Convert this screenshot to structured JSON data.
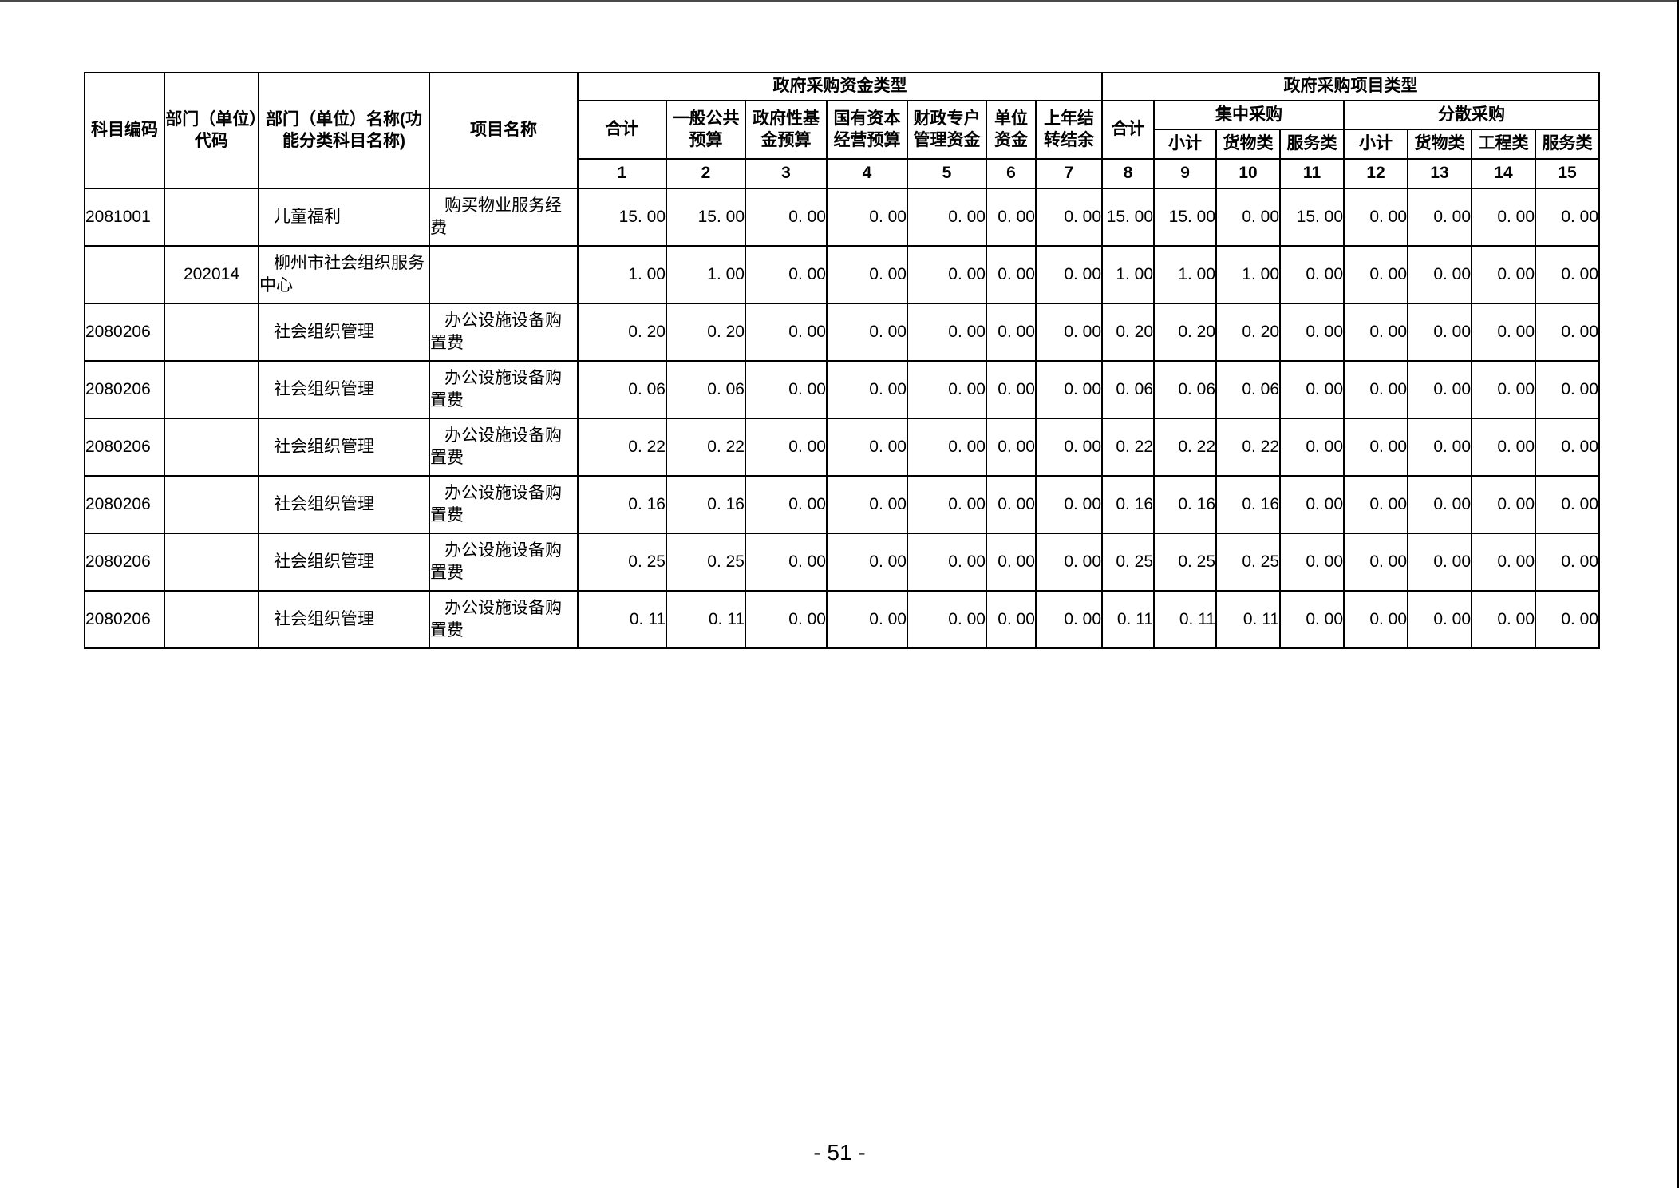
{
  "page": {
    "number_label": "- 51 -",
    "background": "#ffffff",
    "top_edge_color": "#4a4a4a",
    "right_edge_color": "#000000"
  },
  "table": {
    "border_color": "#000000",
    "header": {
      "col_subject_code": "科目编码",
      "col_dept_code": "部门（单位）代码",
      "col_dept_name": "部门（单位）名称(功能分类科目名称)",
      "col_project_name": "项目名称",
      "group_fund_type": "政府采购资金类型",
      "group_project_type": "政府采购项目类型",
      "fund_cols": [
        "合计",
        "一般公共预算",
        "政府性基金预算",
        "国有资本经营预算",
        "财政专户管理资金",
        "单位资金",
        "上年结转结余"
      ],
      "total_col": "合计",
      "centralized": "集中采购",
      "decentralized": "分散采购",
      "centralized_cols": [
        "小计",
        "货物类",
        "服务类"
      ],
      "decentralized_cols": [
        "小计",
        "货物类",
        "工程类",
        "服务类"
      ],
      "index_row": [
        "1",
        "2",
        "3",
        "4",
        "5",
        "6",
        "7",
        "8",
        "9",
        "10",
        "11",
        "12",
        "13",
        "14",
        "15"
      ]
    },
    "rows": [
      {
        "subject_code": "2081001",
        "dept_code": "",
        "dept_name": "儿童福利",
        "project_name": "购买物业服务经费",
        "values": [
          "15. 00",
          "15. 00",
          "0. 00",
          "0. 00",
          "0. 00",
          "0. 00",
          "0. 00",
          "15. 00",
          "15. 00",
          "0. 00",
          "15. 00",
          "0. 00",
          "0. 00",
          "0. 00",
          "0. 00"
        ]
      },
      {
        "subject_code": "",
        "dept_code": "202014",
        "dept_name": "柳州市社会组织服务中心",
        "project_name": "",
        "values": [
          "1. 00",
          "1. 00",
          "0. 00",
          "0. 00",
          "0. 00",
          "0. 00",
          "0. 00",
          "1. 00",
          "1. 00",
          "1. 00",
          "0. 00",
          "0. 00",
          "0. 00",
          "0. 00",
          "0. 00"
        ]
      },
      {
        "subject_code": "2080206",
        "dept_code": "",
        "dept_name": "社会组织管理",
        "project_name": "办公设施设备购置费",
        "values": [
          "0. 20",
          "0. 20",
          "0. 00",
          "0. 00",
          "0. 00",
          "0. 00",
          "0. 00",
          "0. 20",
          "0. 20",
          "0. 20",
          "0. 00",
          "0. 00",
          "0. 00",
          "0. 00",
          "0. 00"
        ]
      },
      {
        "subject_code": "2080206",
        "dept_code": "",
        "dept_name": "社会组织管理",
        "project_name": "办公设施设备购置费",
        "values": [
          "0. 06",
          "0. 06",
          "0. 00",
          "0. 00",
          "0. 00",
          "0. 00",
          "0. 00",
          "0. 06",
          "0. 06",
          "0. 06",
          "0. 00",
          "0. 00",
          "0. 00",
          "0. 00",
          "0. 00"
        ]
      },
      {
        "subject_code": "2080206",
        "dept_code": "",
        "dept_name": "社会组织管理",
        "project_name": "办公设施设备购置费",
        "values": [
          "0. 22",
          "0. 22",
          "0. 00",
          "0. 00",
          "0. 00",
          "0. 00",
          "0. 00",
          "0. 22",
          "0. 22",
          "0. 22",
          "0. 00",
          "0. 00",
          "0. 00",
          "0. 00",
          "0. 00"
        ]
      },
      {
        "subject_code": "2080206",
        "dept_code": "",
        "dept_name": "社会组织管理",
        "project_name": "办公设施设备购置费",
        "values": [
          "0. 16",
          "0. 16",
          "0. 00",
          "0. 00",
          "0. 00",
          "0. 00",
          "0. 00",
          "0. 16",
          "0. 16",
          "0. 16",
          "0. 00",
          "0. 00",
          "0. 00",
          "0. 00",
          "0. 00"
        ]
      },
      {
        "subject_code": "2080206",
        "dept_code": "",
        "dept_name": "社会组织管理",
        "project_name": "办公设施设备购置费",
        "values": [
          "0. 25",
          "0. 25",
          "0. 00",
          "0. 00",
          "0. 00",
          "0. 00",
          "0. 00",
          "0. 25",
          "0. 25",
          "0. 25",
          "0. 00",
          "0. 00",
          "0. 00",
          "0. 00",
          "0. 00"
        ]
      },
      {
        "subject_code": "2080206",
        "dept_code": "",
        "dept_name": "社会组织管理",
        "project_name": "办公设施设备购置费",
        "values": [
          "0. 11",
          "0. 11",
          "0. 00",
          "0. 00",
          "0. 00",
          "0. 00",
          "0. 00",
          "0. 11",
          "0. 11",
          "0. 11",
          "0. 00",
          "0. 00",
          "0. 00",
          "0. 00",
          "0. 00"
        ]
      }
    ]
  }
}
